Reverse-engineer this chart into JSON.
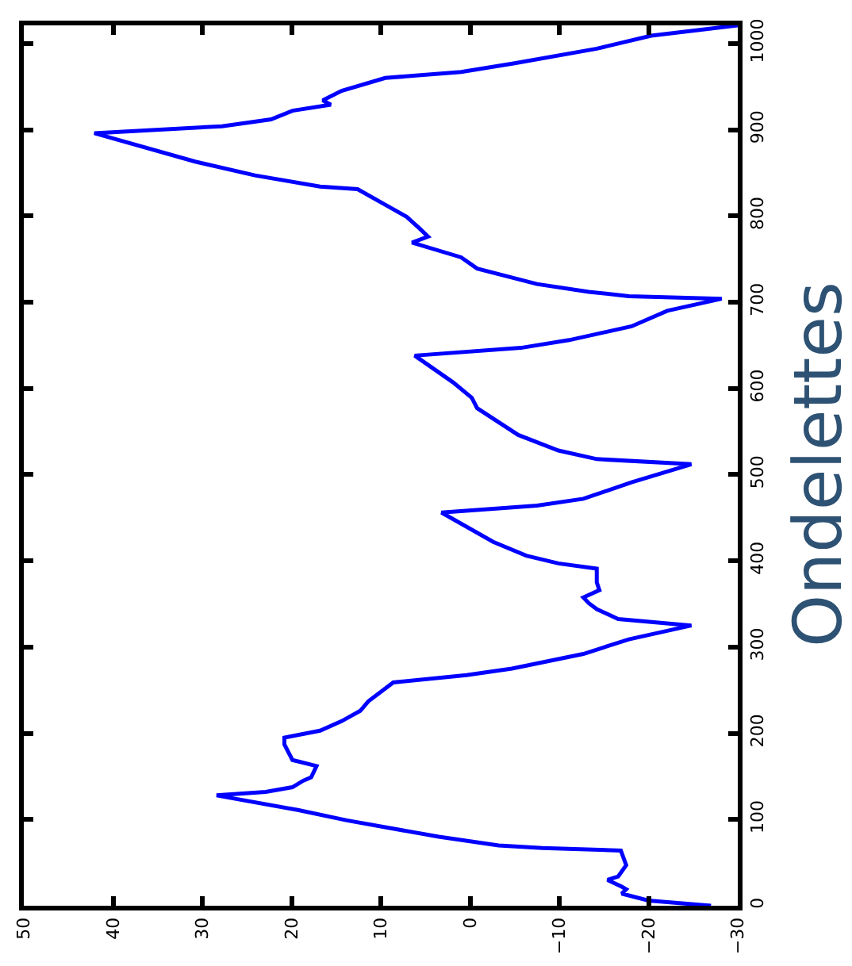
{
  "chart_data": {
    "type": "line",
    "title": "Ondelettes",
    "orientation": "horizontal",
    "x": [
      0,
      6,
      14,
      19,
      22,
      30,
      34,
      47,
      64,
      67,
      70,
      80,
      99,
      111,
      128,
      132,
      137.5,
      145,
      149,
      162,
      169,
      187,
      195,
      203,
      214,
      226,
      237,
      259,
      267.5,
      275,
      292,
      309,
      325,
      332.5,
      344,
      351,
      357.5,
      366,
      375,
      391,
      397,
      406,
      422,
      456,
      464,
      472,
      491,
      512,
      518,
      528,
      546,
      577,
      589,
      607,
      638,
      647,
      656,
      672,
      690,
      704,
      707,
      712,
      721,
      739,
      752,
      769,
      776,
      785,
      799,
      813,
      831,
      834,
      847,
      863,
      896,
      904,
      912,
      922,
      929,
      934,
      945,
      960,
      967,
      977,
      994,
      1009,
      1021
    ],
    "series": [
      {
        "color": "#0000ff",
        "values": [
          -27,
          -20,
          -17,
          -17.5,
          -17,
          -15.4,
          -16.6,
          -17.5,
          -16.9,
          -8.1,
          -3.2,
          3.5,
          13.8,
          19.3,
          28.4,
          22.9,
          19.9,
          18.7,
          17.8,
          17.2,
          19.9,
          20.8,
          20.8,
          16.8,
          14.4,
          12.3,
          11.4,
          8.6,
          0.4,
          -4.7,
          -12.7,
          -17.8,
          -24.8,
          -16.6,
          -14.2,
          -13.3,
          -12.7,
          -14.5,
          -14.2,
          -14.2,
          -9.9,
          -6.3,
          -2.6,
          3.2,
          -7.5,
          -12.7,
          -18.1,
          -24.8,
          -14.2,
          -9.9,
          -5.4,
          -0.8,
          -0.2,
          1.9,
          6.2,
          -5.7,
          -11.1,
          -18.1,
          -22.1,
          -28.2,
          -17.8,
          -13.3,
          -7.5,
          -0.8,
          1.0,
          6.5,
          4.7,
          5.6,
          7.1,
          9.5,
          12.6,
          16.8,
          24.1,
          30.8,
          42.1,
          27.8,
          22.3,
          19.9,
          15.6,
          16.5,
          14.4,
          9.5,
          1.0,
          -5.0,
          -14.2,
          -20.3,
          -30
        ]
      }
    ],
    "xlim": [
      50,
      -30
    ],
    "xticks": [
      {
        "value": 50,
        "label": "50"
      },
      40,
      30,
      20,
      10,
      0,
      {
        "value": -10,
        "label": "−10"
      },
      {
        "value": -20,
        "label": "−20"
      },
      {
        "value": -30,
        "label": "−30"
      }
    ],
    "ylim": [
      0,
      1021
    ],
    "yticks": [
      0,
      100,
      200,
      300,
      400,
      500,
      600,
      700,
      800,
      900,
      1000
    ],
    "grid": false,
    "legend": false,
    "marker": "none",
    "line_style": "solid"
  }
}
